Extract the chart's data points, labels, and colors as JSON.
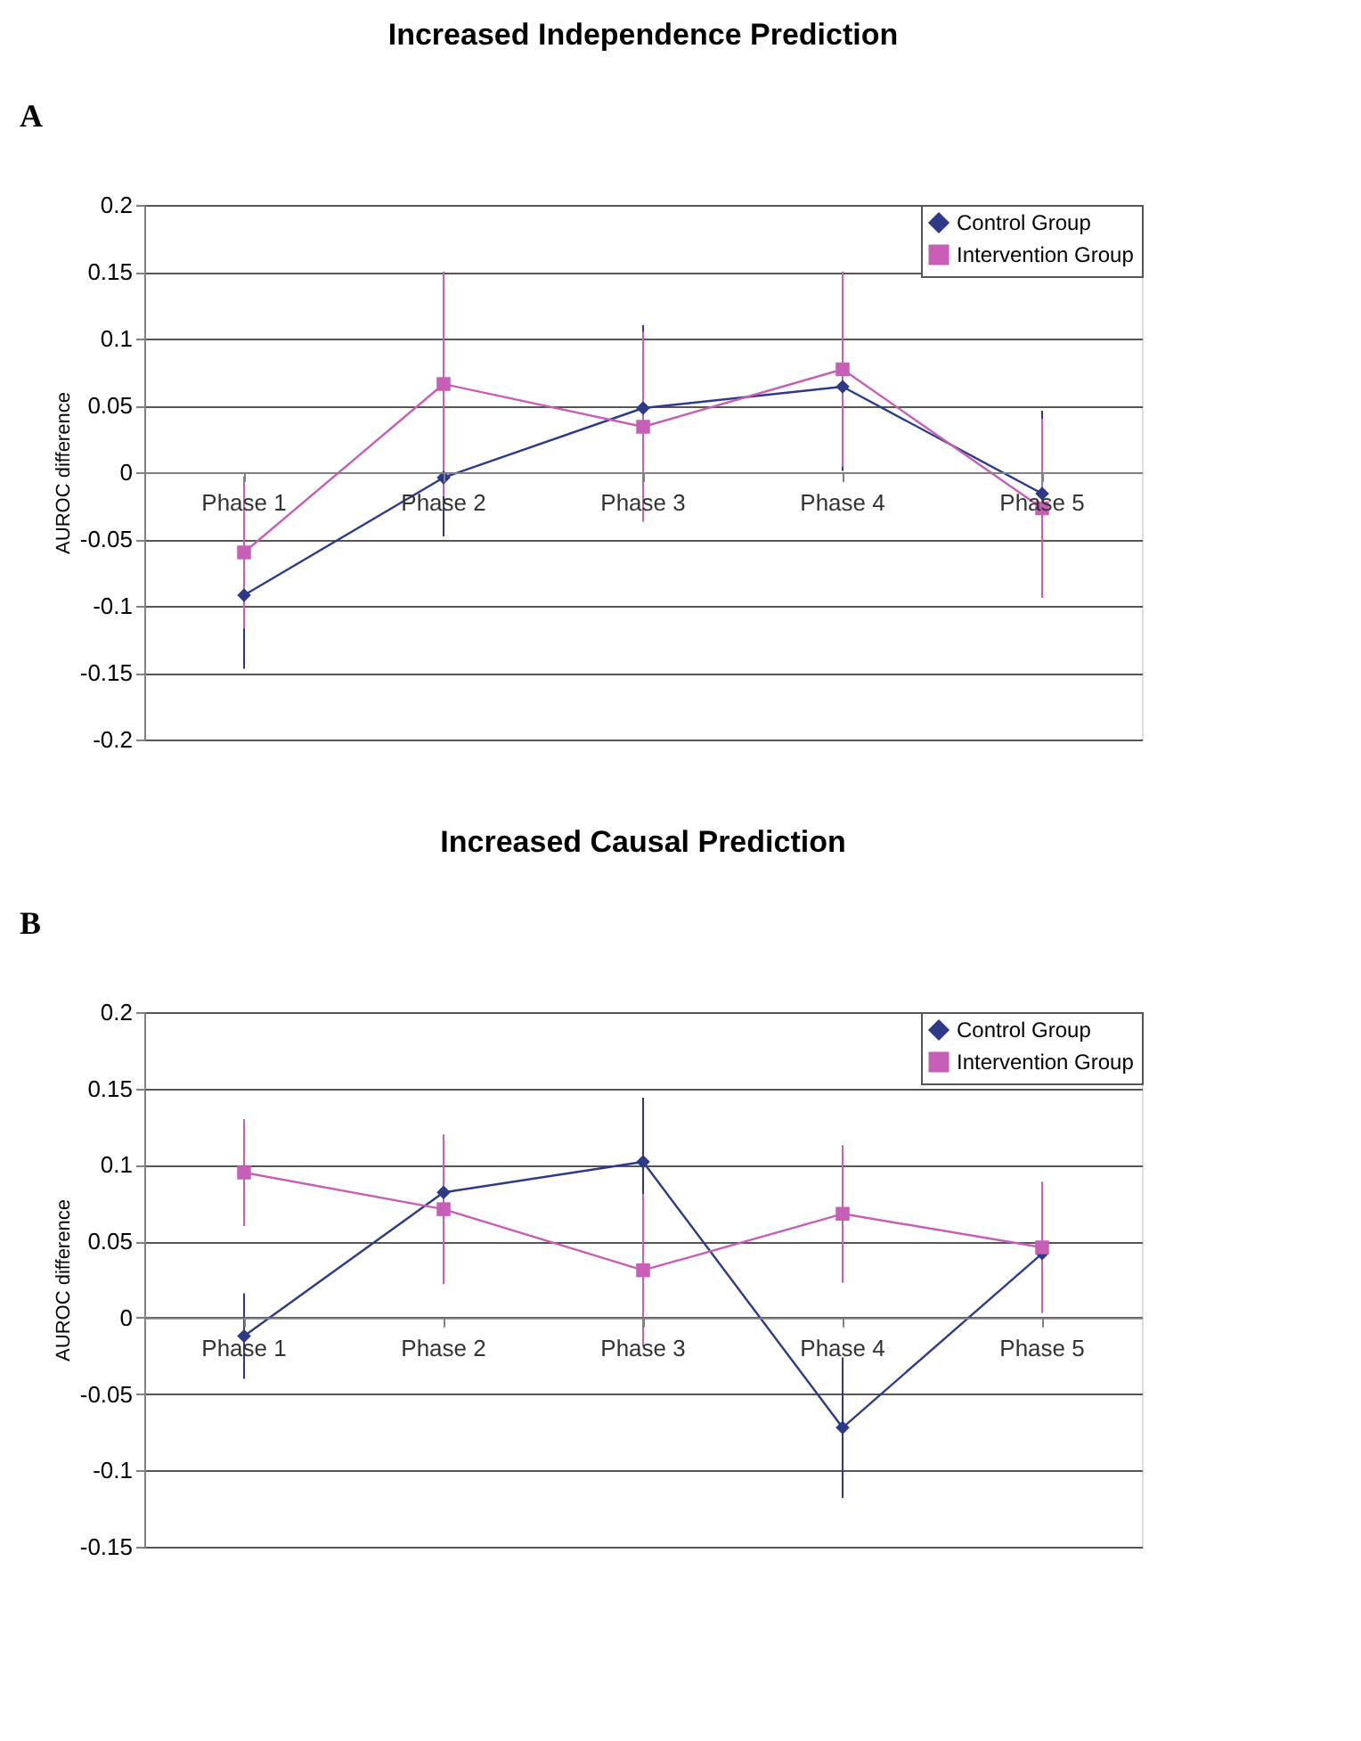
{
  "chart_data": [
    {
      "type": "line",
      "title": "Increased Independence Prediction",
      "ylabel": "AUROC  difference",
      "annotations": [
        "A"
      ],
      "categories": [
        "Phase 1",
        "Phase 2",
        "Phase 3",
        "Phase 4",
        "Phase 5"
      ],
      "ylim": [
        -0.2,
        0.2
      ],
      "yticks": [
        -0.2,
        -0.15,
        -0.1,
        -0.05,
        0,
        0.05,
        0.1,
        0.15,
        0.2
      ],
      "grid": "y",
      "legend": "top right",
      "series": [
        {
          "name": "Control Group",
          "color": "#2e3a87",
          "marker": "diamond",
          "values": [
            -0.092,
            -0.004,
            0.048,
            0.064,
            -0.016
          ],
          "errors": [
            0.055,
            0.044,
            0.062,
            0.063,
            0.062
          ]
        },
        {
          "name": "Intervention Group",
          "color": "#c65fb5",
          "marker": "square",
          "values": [
            -0.06,
            0.066,
            0.034,
            0.077,
            -0.027
          ],
          "errors": [
            0.057,
            0.084,
            0.071,
            0.073,
            0.067
          ]
        }
      ]
    },
    {
      "type": "line",
      "title": "Increased Causal Prediction",
      "ylabel": "AUROC  difference",
      "annotations": [
        "B"
      ],
      "categories": [
        "Phase 1",
        "Phase 2",
        "Phase 3",
        "Phase 4",
        "Phase 5"
      ],
      "ylim": [
        -0.15,
        0.2
      ],
      "yticks": [
        -0.15,
        -0.1,
        -0.05,
        0,
        0.05,
        0.1,
        0.15,
        0.2
      ],
      "grid": "y",
      "legend": "top right",
      "series": [
        {
          "name": "Control Group",
          "color": "#2e3a87",
          "marker": "diamond",
          "values": [
            -0.012,
            0.082,
            0.102,
            -0.072,
            0.042
          ],
          "errors": [
            0.028,
            null,
            0.042,
            0.046,
            null
          ]
        },
        {
          "name": "Intervention Group",
          "color": "#c65fb5",
          "marker": "square",
          "values": [
            0.095,
            0.071,
            0.031,
            0.068,
            0.046
          ],
          "errors": [
            0.035,
            0.049,
            0.05,
            0.045,
            0.043
          ]
        }
      ]
    }
  ]
}
